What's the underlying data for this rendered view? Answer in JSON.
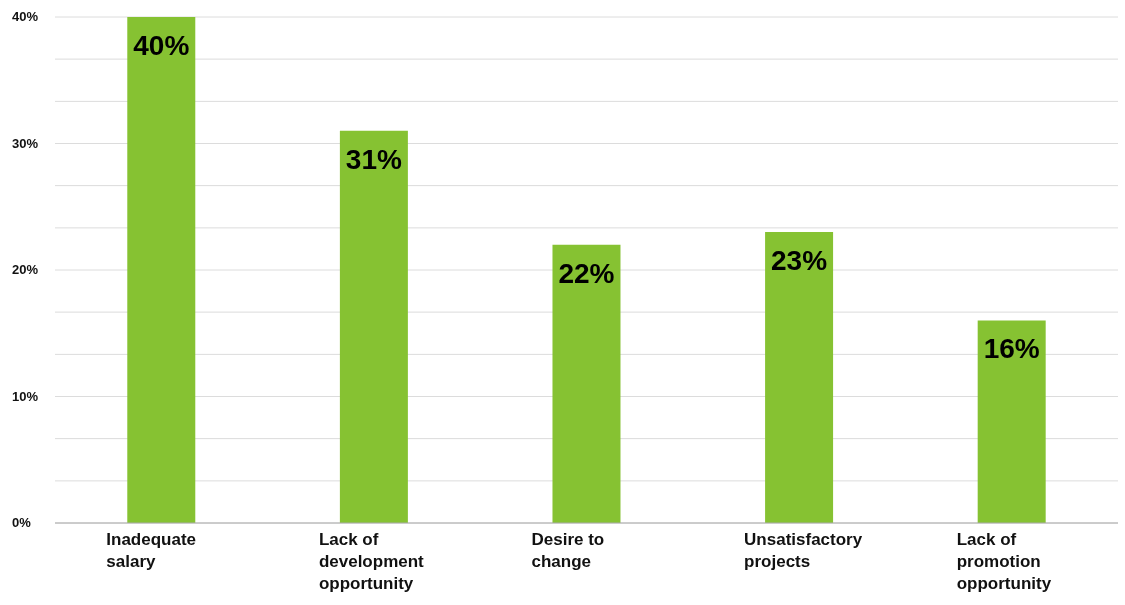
{
  "chart_data": {
    "type": "bar",
    "categories": [
      "Inadequate salary",
      "Lack of development opportunity",
      "Desire to change",
      "Unsatisfactory projects",
      "Lack of promotion opportunity"
    ],
    "values": [
      40,
      31,
      22,
      23,
      16
    ],
    "value_labels": [
      "40%",
      "31%",
      "22%",
      "23%",
      "16%"
    ],
    "color": "#86c232",
    "ylim": [
      0,
      40
    ],
    "yticks": [
      {
        "value": 0,
        "label": "0%"
      },
      {
        "value": 3.33,
        "label": null
      },
      {
        "value": 6.67,
        "label": null
      },
      {
        "value": 10,
        "label": "10%"
      },
      {
        "value": 13.33,
        "label": null
      },
      {
        "value": 16.67,
        "label": null
      },
      {
        "value": 20,
        "label": "20%"
      },
      {
        "value": 23.33,
        "label": null
      },
      {
        "value": 26.67,
        "label": null
      },
      {
        "value": 30,
        "label": "30%"
      },
      {
        "value": 33.33,
        "label": null
      },
      {
        "value": 36.67,
        "label": null
      },
      {
        "value": 40,
        "label": "40%"
      }
    ],
    "grid": "y",
    "legend": false
  }
}
